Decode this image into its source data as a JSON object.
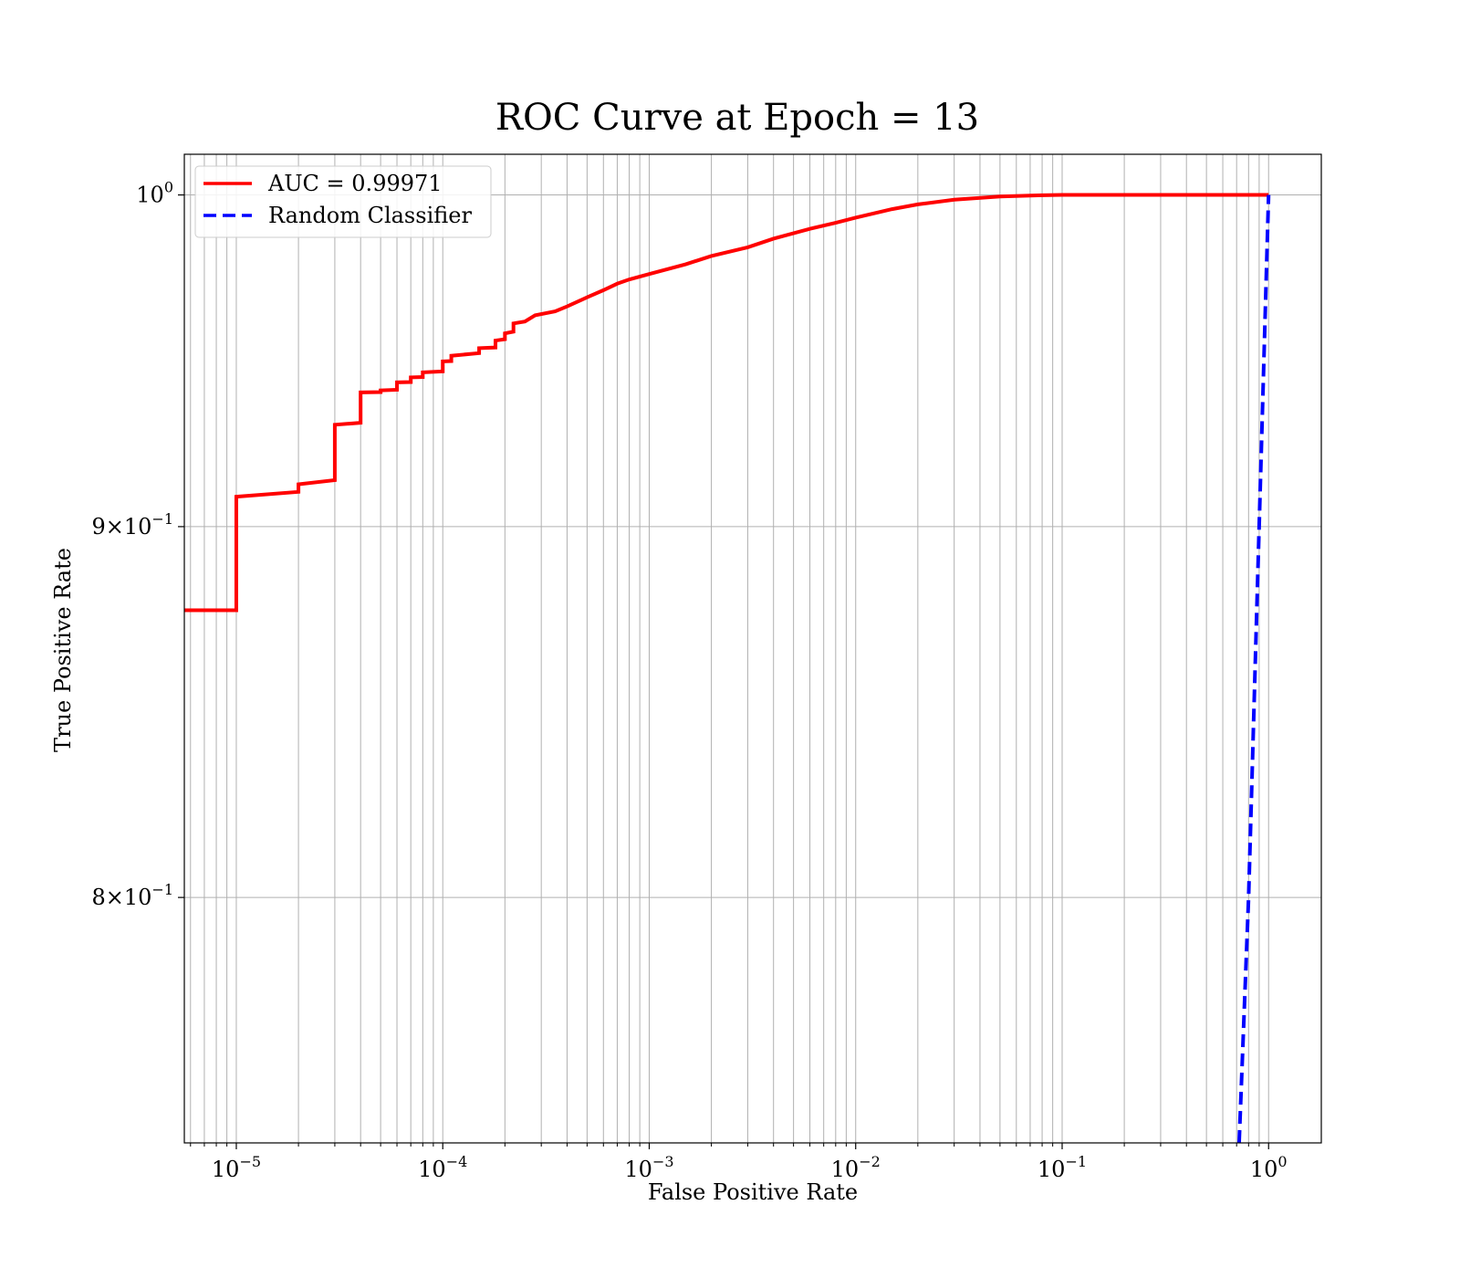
{
  "chart_data": {
    "type": "line",
    "title": "ROC Curve at Epoch = 13",
    "xlabel": "False Positive Rate",
    "ylabel": "True Positive Rate",
    "xscale": "log",
    "yscale": "log",
    "xlim": [
      5.6e-06,
      1.8
    ],
    "ylim": [
      0.74,
      1.013
    ],
    "grid": true,
    "grid_minor": true,
    "legend_position": "top-left",
    "x_ticks": [
      {
        "value": 1e-05,
        "base": "10",
        "exp": "−5"
      },
      {
        "value": 0.0001,
        "base": "10",
        "exp": "−4"
      },
      {
        "value": 0.001,
        "base": "10",
        "exp": "−3"
      },
      {
        "value": 0.01,
        "base": "10",
        "exp": "−2"
      },
      {
        "value": 0.1,
        "base": "10",
        "exp": "−1"
      },
      {
        "value": 1,
        "base": "10",
        "exp": "0"
      }
    ],
    "y_ticks": [
      {
        "value": 1.0,
        "mant": "",
        "base": "10",
        "exp": "0"
      },
      {
        "value": 0.9,
        "mant": "9×",
        "base": "10",
        "exp": "−1"
      },
      {
        "value": 0.8,
        "mant": "8×",
        "base": "10",
        "exp": "−1"
      }
    ],
    "series": [
      {
        "name": "AUC = 0.99971",
        "color": "#ff0000",
        "style": "solid",
        "points": [
          [
            5.6e-06,
            0.8764
          ],
          [
            1e-05,
            0.8764
          ],
          [
            1e-05,
            0.9086
          ],
          [
            2e-05,
            0.91
          ],
          [
            2e-05,
            0.9122
          ],
          [
            3e-05,
            0.9134
          ],
          [
            3e-05,
            0.9296
          ],
          [
            4e-05,
            0.9302
          ],
          [
            4e-05,
            0.9392
          ],
          [
            5e-05,
            0.9393
          ],
          [
            5e-05,
            0.9398
          ],
          [
            6e-05,
            0.94
          ],
          [
            6e-05,
            0.9422
          ],
          [
            7e-05,
            0.9423
          ],
          [
            7e-05,
            0.9437
          ],
          [
            8e-05,
            0.9438
          ],
          [
            8e-05,
            0.9452
          ],
          [
            0.0001,
            0.9455
          ],
          [
            0.0001,
            0.9485
          ],
          [
            0.00011,
            0.9486
          ],
          [
            0.00011,
            0.9502
          ],
          [
            0.00015,
            0.951
          ],
          [
            0.00015,
            0.9525
          ],
          [
            0.00018,
            0.9527
          ],
          [
            0.00018,
            0.9548
          ],
          [
            0.0002,
            0.9552
          ],
          [
            0.0002,
            0.957
          ],
          [
            0.00022,
            0.9575
          ],
          [
            0.00022,
            0.96
          ],
          [
            0.00025,
            0.9606
          ],
          [
            0.00028,
            0.9625
          ],
          [
            0.00035,
            0.9637
          ],
          [
            0.0004,
            0.9652
          ],
          [
            0.0005,
            0.968
          ],
          [
            0.0006,
            0.9702
          ],
          [
            0.0007,
            0.9722
          ],
          [
            0.0008,
            0.9735
          ],
          [
            0.001,
            0.9752
          ],
          [
            0.0015,
            0.9782
          ],
          [
            0.002,
            0.9808
          ],
          [
            0.003,
            0.9835
          ],
          [
            0.004,
            0.9862
          ],
          [
            0.006,
            0.9893
          ],
          [
            0.008,
            0.9912
          ],
          [
            0.01,
            0.9928
          ],
          [
            0.015,
            0.9955
          ],
          [
            0.02,
            0.997
          ],
          [
            0.03,
            0.9985
          ],
          [
            0.05,
            0.9995
          ],
          [
            0.08,
            0.9999
          ],
          [
            0.1,
            1.0
          ],
          [
            1.0,
            1.0
          ]
        ]
      },
      {
        "name": "Random Classifier",
        "color": "#0000ff",
        "style": "dashed",
        "points": [
          [
            0.72,
            0.72
          ],
          [
            0.8,
            0.8
          ],
          [
            0.9,
            0.9
          ],
          [
            1.0,
            1.0
          ]
        ]
      }
    ]
  }
}
